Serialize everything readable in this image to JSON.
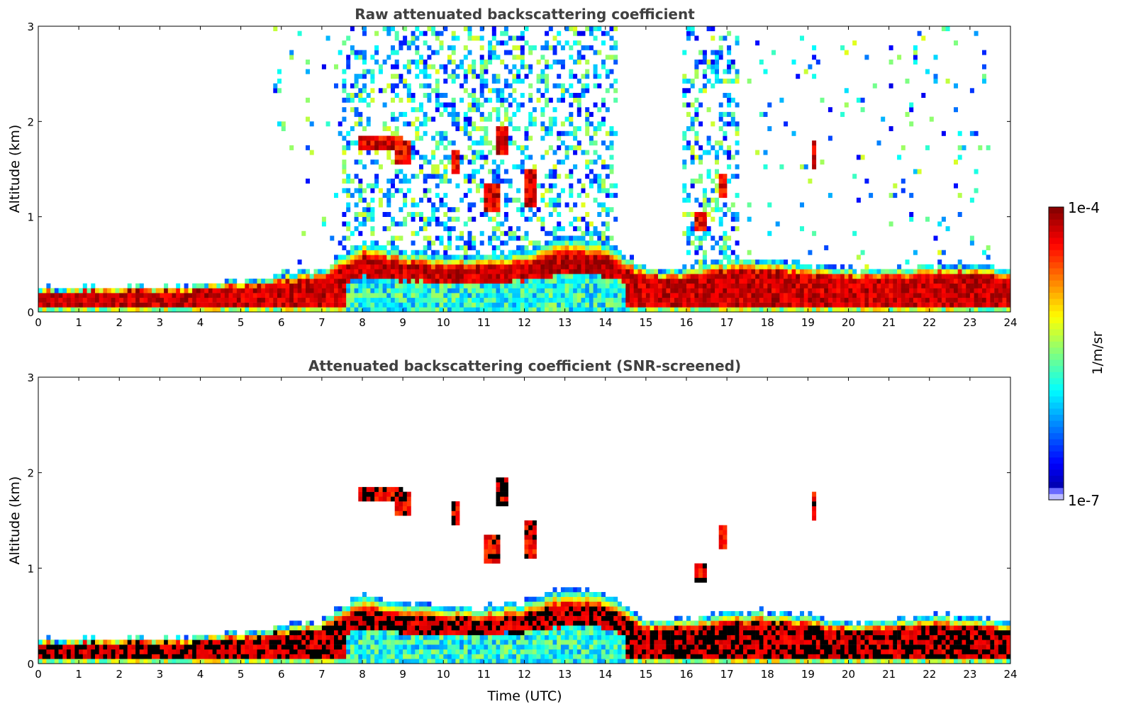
{
  "chart_data": [
    {
      "type": "heatmap",
      "title": "Raw attenuated backscattering coefficient",
      "xlabel": "",
      "ylabel": "Altitude (km)",
      "xlim": [
        0,
        24
      ],
      "ylim": [
        0,
        3
      ],
      "xticks": [
        "0",
        "1",
        "2",
        "3",
        "4",
        "5",
        "6",
        "7",
        "8",
        "9",
        "10",
        "11",
        "12",
        "13",
        "14",
        "15",
        "16",
        "17",
        "18",
        "19",
        "20",
        "21",
        "22",
        "23",
        "24"
      ],
      "yticks": [
        "0",
        "1",
        "2",
        "3"
      ],
      "screened": false
    },
    {
      "type": "heatmap",
      "title": "Attenuated backscattering coefficient (SNR-screened)",
      "xlabel": "Time (UTC)",
      "ylabel": "Altitude (km)",
      "xlim": [
        0,
        24
      ],
      "ylim": [
        0,
        3
      ],
      "xticks": [
        "0",
        "1",
        "2",
        "3",
        "4",
        "5",
        "6",
        "7",
        "8",
        "9",
        "10",
        "11",
        "12",
        "13",
        "14",
        "15",
        "16",
        "17",
        "18",
        "19",
        "20",
        "21",
        "22",
        "23",
        "24"
      ],
      "yticks": [
        "0",
        "1",
        "2",
        "3"
      ],
      "screened": true
    }
  ],
  "boundary_layer": {
    "hours": [
      0,
      1,
      2,
      3,
      4,
      5,
      6,
      7,
      8,
      9,
      10,
      11,
      12,
      13,
      14,
      15,
      16,
      17,
      18,
      19,
      20,
      21,
      22,
      23,
      24
    ],
    "top_km": [
      0.25,
      0.26,
      0.27,
      0.27,
      0.29,
      0.33,
      0.4,
      0.45,
      0.75,
      0.65,
      0.6,
      0.6,
      0.65,
      0.8,
      0.75,
      0.45,
      0.45,
      0.55,
      0.55,
      0.5,
      0.45,
      0.45,
      0.5,
      0.5,
      0.45
    ]
  },
  "cloud_layers": [
    {
      "start": 7.9,
      "end": 9.0,
      "base_km": 1.7,
      "top_km": 1.87
    },
    {
      "start": 8.8,
      "end": 9.2,
      "base_km": 1.55,
      "top_km": 1.8
    },
    {
      "start": 11.3,
      "end": 11.6,
      "base_km": 1.65,
      "top_km": 1.95
    },
    {
      "start": 11.05,
      "end": 11.35,
      "base_km": 1.05,
      "top_km": 1.35
    },
    {
      "start": 12.0,
      "end": 12.3,
      "base_km": 1.1,
      "top_km": 1.5
    },
    {
      "start": 10.2,
      "end": 10.35,
      "base_km": 1.45,
      "top_km": 1.7
    },
    {
      "start": 16.2,
      "end": 16.5,
      "base_km": 0.85,
      "top_km": 1.05
    },
    {
      "start": 16.8,
      "end": 17.0,
      "base_km": 1.2,
      "top_km": 1.45
    },
    {
      "start": 19.1,
      "end": 19.2,
      "base_km": 1.5,
      "top_km": 1.8
    }
  ],
  "noise_periods": [
    [
      7.5,
      14.3
    ],
    [
      15.9,
      17.3
    ],
    [
      5.7,
      7.5
    ],
    [
      17.5,
      23.5
    ]
  ],
  "colorbar": {
    "label": "1/m/sr",
    "max_label": "1e-4",
    "min_label": "1e-7",
    "log_range": [
      -7,
      -4
    ],
    "colormap": "jet"
  }
}
